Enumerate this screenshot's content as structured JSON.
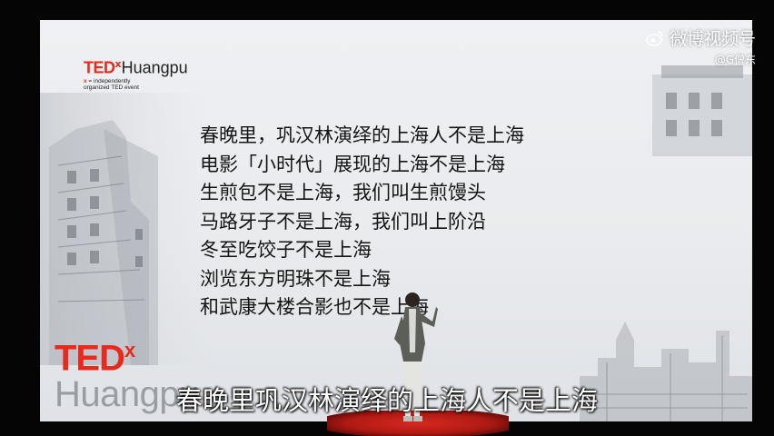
{
  "logo_top": {
    "brand": "TED",
    "x": "x",
    "city": "Huangpu",
    "tag_x": "x",
    "tag_line1": " = independently",
    "tag_line2": "organized TED event"
  },
  "logo_big": {
    "brand": "TED",
    "x": "x",
    "city": "Huangpu"
  },
  "slide_lines": [
    "春晚里，巩汉林演绎的上海人不是上海",
    "电影「小时代」展现的上海不是上海",
    "生煎包不是上海，我们叫生煎馒头",
    "马路牙子不是上海，我们叫上阶沿",
    "冬至吃饺子不是上海",
    "浏览东方明珠不是上海",
    "和武康大楼合影也不是上海"
  ],
  "watermark": {
    "title": "微博视频号",
    "user": "@G僧东",
    "icon": "weibo-icon"
  },
  "subtitle": "春晚里巩汉林演绎的上海人不是上海",
  "colors": {
    "ted_red": "#e62b1e",
    "screen": "#eceef1",
    "carpet": "#c8221a"
  }
}
